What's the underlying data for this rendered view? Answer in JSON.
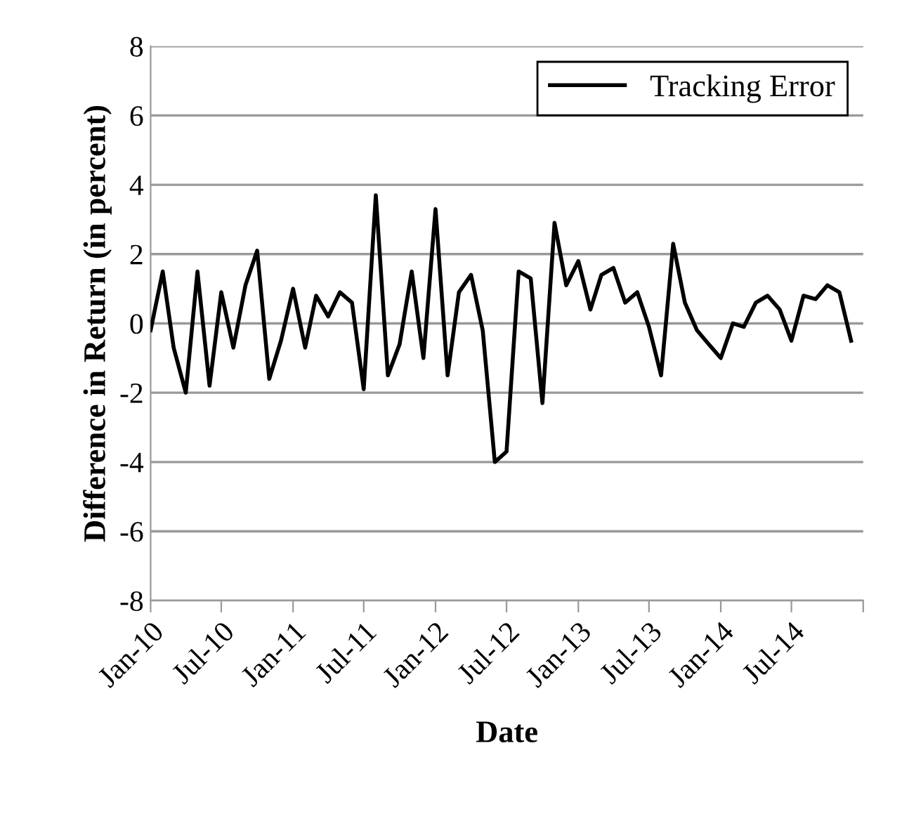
{
  "chart_data": {
    "type": "line",
    "xlabel": "Date",
    "ylabel": "Difference in Return (in percent)",
    "x": [
      "2010-01",
      "2010-02",
      "2010-03",
      "2010-04",
      "2010-05",
      "2010-06",
      "2010-07",
      "2010-08",
      "2010-09",
      "2010-10",
      "2010-11",
      "2010-12",
      "2011-01",
      "2011-02",
      "2011-03",
      "2011-04",
      "2011-05",
      "2011-06",
      "2011-07",
      "2011-08",
      "2011-09",
      "2011-10",
      "2011-11",
      "2011-12",
      "2012-01",
      "2012-02",
      "2012-03",
      "2012-04",
      "2012-05",
      "2012-06",
      "2012-07",
      "2012-08",
      "2012-09",
      "2012-10",
      "2012-11",
      "2012-12",
      "2013-01",
      "2013-02",
      "2013-03",
      "2013-04",
      "2013-05",
      "2013-06",
      "2013-07",
      "2013-08",
      "2013-09",
      "2013-10",
      "2013-11",
      "2013-12",
      "2014-01",
      "2014-02",
      "2014-03",
      "2014-04",
      "2014-05",
      "2014-06",
      "2014-07",
      "2014-08",
      "2014-09",
      "2014-10",
      "2014-11",
      "2014-12"
    ],
    "series": [
      {
        "name": "Tracking Error",
        "color": "#000000",
        "values": [
          -0.2,
          1.5,
          -0.7,
          -2.0,
          1.5,
          -1.8,
          0.9,
          -0.7,
          1.1,
          2.1,
          -1.6,
          -0.5,
          1.0,
          -0.7,
          0.8,
          0.2,
          0.9,
          0.6,
          -1.9,
          3.7,
          -1.5,
          -0.6,
          1.5,
          -1.0,
          3.3,
          -1.5,
          0.9,
          1.4,
          -0.2,
          -4.0,
          -3.7,
          1.5,
          1.3,
          -2.3,
          2.9,
          1.1,
          1.8,
          0.4,
          1.4,
          1.6,
          0.6,
          0.9,
          -0.1,
          -1.5,
          2.3,
          0.6,
          -0.2,
          -0.6,
          -1.0,
          0.0,
          -0.1,
          0.6,
          0.8,
          0.4,
          -0.5,
          0.8,
          0.7,
          1.1,
          0.9,
          -0.5
        ]
      }
    ],
    "xlim": [
      "2010-01",
      "2015-01"
    ],
    "xticks": [
      {
        "value": "2010-01",
        "label": "Jan-10"
      },
      {
        "value": "2010-07",
        "label": "Jul-10"
      },
      {
        "value": "2011-01",
        "label": "Jan-11"
      },
      {
        "value": "2011-07",
        "label": "Jul-11"
      },
      {
        "value": "2012-01",
        "label": "Jan-12"
      },
      {
        "value": "2012-07",
        "label": "Jul-12"
      },
      {
        "value": "2013-01",
        "label": "Jan-13"
      },
      {
        "value": "2013-07",
        "label": "Jul-13"
      },
      {
        "value": "2014-01",
        "label": "Jan-14"
      },
      {
        "value": "2014-07",
        "label": "Jul-14"
      },
      {
        "value": "2015-01",
        "label": null
      }
    ],
    "ylim": [
      -8,
      8
    ],
    "yticks": [
      -8,
      -6,
      -4,
      -2,
      0,
      2,
      4,
      6,
      8
    ],
    "grid": "y",
    "legend": "top right",
    "marker": "none",
    "line_style": "solid"
  }
}
